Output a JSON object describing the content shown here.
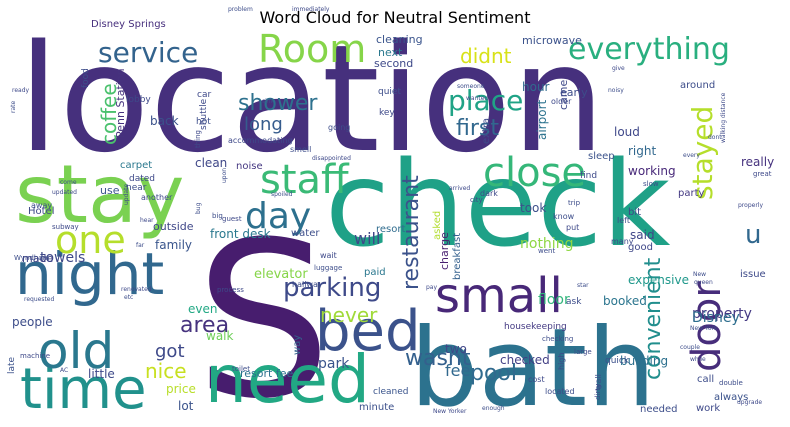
{
  "chart_data": {
    "type": "wordcloud",
    "title": "Word Cloud for Neutral Sentiment",
    "words": [
      {
        "text": "location",
        "color": "#46307d"
      },
      {
        "text": "S",
        "color": "#471d6e"
      },
      {
        "text": "check",
        "color": "#1fa187"
      },
      {
        "text": "bath",
        "color": "#2c728e"
      },
      {
        "text": "stay",
        "color": "#7ad151"
      },
      {
        "text": "need",
        "color": "#22a884"
      },
      {
        "text": "time",
        "color": "#21918c"
      },
      {
        "text": "night",
        "color": "#31688e"
      },
      {
        "text": "bed",
        "color": "#3b528b"
      },
      {
        "text": "small",
        "color": "#482878"
      },
      {
        "text": "old",
        "color": "#2a788e"
      },
      {
        "text": "Room",
        "color": "#86d549"
      },
      {
        "text": "staff",
        "color": "#3aba76"
      },
      {
        "text": "close",
        "color": "#35b779"
      },
      {
        "text": "day",
        "color": "#2d708e"
      },
      {
        "text": "one",
        "color": "#b5de2b"
      },
      {
        "text": "door",
        "color": "#472d7b"
      },
      {
        "text": "everything",
        "color": "#29af7f"
      },
      {
        "text": "service",
        "color": "#33638d"
      },
      {
        "text": "place",
        "color": "#20a386"
      },
      {
        "text": "stayed",
        "color": "#b5de2b"
      },
      {
        "text": "parking",
        "color": "#3e4a89"
      },
      {
        "text": "convenient",
        "color": "#218e8d"
      },
      {
        "text": "shower",
        "color": "#2d718e"
      },
      {
        "text": "restaurant",
        "color": "#3b528b"
      },
      {
        "text": "first",
        "color": "#31688e"
      },
      {
        "text": "pool",
        "color": "#306a8e"
      },
      {
        "text": "wasnt",
        "color": "#34608d"
      },
      {
        "text": "area",
        "color": "#46327e"
      },
      {
        "text": "u",
        "color": "#31688e"
      },
      {
        "text": "never",
        "color": "#a0da39"
      },
      {
        "text": "nice",
        "color": "#c8e020"
      },
      {
        "text": "got",
        "color": "#3e4989"
      },
      {
        "text": "long",
        "color": "#365c8d"
      },
      {
        "text": "will",
        "color": "#3f4788"
      },
      {
        "text": "coffee",
        "color": "#4ac16d"
      },
      {
        "text": "didnt",
        "color": "#d8e219"
      },
      {
        "text": "fee",
        "color": "#31688e"
      },
      {
        "text": "property",
        "color": "#443983"
      },
      {
        "text": "Disney",
        "color": "#2e6e8e"
      },
      {
        "text": "park",
        "color": "#3a548c"
      },
      {
        "text": "nothing",
        "color": "#8fd744"
      },
      {
        "text": "floor",
        "color": "#31b57b"
      },
      {
        "text": "family",
        "color": "#39558c"
      },
      {
        "text": "front desk",
        "color": "#2a788e"
      },
      {
        "text": "elevator",
        "color": "#86d549"
      },
      {
        "text": "towels",
        "color": "#3e4989"
      },
      {
        "text": "made",
        "color": "#414487"
      },
      {
        "text": "even",
        "color": "#22a884"
      },
      {
        "text": "people",
        "color": "#3d4d8a"
      },
      {
        "text": "walk",
        "color": "#6ece58"
      },
      {
        "text": "little",
        "color": "#3e4989"
      },
      {
        "text": "price",
        "color": "#b8de29"
      },
      {
        "text": "lot",
        "color": "#3a538b"
      },
      {
        "text": "resort fee",
        "color": "#2c728e"
      },
      {
        "text": "checked",
        "color": "#423f85"
      },
      {
        "text": "two",
        "color": "#404688"
      },
      {
        "text": "booked",
        "color": "#2b758e"
      },
      {
        "text": "working",
        "color": "#482979"
      },
      {
        "text": "building",
        "color": "#2d708e"
      },
      {
        "text": "expensive",
        "color": "#1f988b"
      },
      {
        "text": "back",
        "color": "#3b528b"
      },
      {
        "text": "hour",
        "color": "#306a8e"
      },
      {
        "text": "next",
        "color": "#2a788e"
      },
      {
        "text": "cleaning",
        "color": "#3a548c"
      },
      {
        "text": "second",
        "color": "#3e4989"
      },
      {
        "text": "early",
        "color": "#3d4d8a"
      },
      {
        "text": "microwave",
        "color": "#3b528b"
      },
      {
        "text": "airport",
        "color": "#2c728e"
      },
      {
        "text": "came",
        "color": "#3e4989"
      },
      {
        "text": "loud",
        "color": "#3f4889"
      },
      {
        "text": "right",
        "color": "#31688e"
      },
      {
        "text": "took",
        "color": "#3c4f8a"
      },
      {
        "text": "said",
        "color": "#404688"
      },
      {
        "text": "really",
        "color": "#46327e"
      },
      {
        "text": "clean",
        "color": "#3f4788"
      },
      {
        "text": "Penn Station",
        "color": "#46337f"
      },
      {
        "text": "Disney Springs",
        "color": "#472f7d"
      },
      {
        "text": "Hotel",
        "color": "#3e4989"
      },
      {
        "text": "outside",
        "color": "#3f4788"
      },
      {
        "text": "use",
        "color": "#3a548c"
      },
      {
        "text": "carpet",
        "color": "#2a788e"
      },
      {
        "text": "noise",
        "color": "#453781"
      },
      {
        "text": "water",
        "color": "#3d4e8a"
      },
      {
        "text": "resort",
        "color": "#2f6c8e"
      },
      {
        "text": "paid",
        "color": "#2a778e"
      },
      {
        "text": "charge",
        "color": "#481f70"
      },
      {
        "text": "asked",
        "color": "#b2dd2d"
      },
      {
        "text": "breakfast",
        "color": "#34608d"
      },
      {
        "text": "housekeeping",
        "color": "#443a83"
      },
      {
        "text": "minute",
        "color": "#3c508b"
      },
      {
        "text": "cleaned",
        "color": "#3a548c"
      },
      {
        "text": "way",
        "color": "#33638d"
      },
      {
        "text": "late",
        "color": "#3b528b"
      },
      {
        "text": "work",
        "color": "#3e4989"
      },
      {
        "text": "needed",
        "color": "#3d4e8a"
      },
      {
        "text": "always",
        "color": "#3b528b"
      },
      {
        "text": "call",
        "color": "#3d4d8a"
      },
      {
        "text": "issue",
        "color": "#3e4a89"
      },
      {
        "text": "good",
        "color": "#3f4788"
      },
      {
        "text": "party",
        "color": "#443983"
      },
      {
        "text": "sleep",
        "color": "#3b528b"
      },
      {
        "text": "extra",
        "color": "#3e4989"
      },
      {
        "text": "find",
        "color": "#3e4989"
      },
      {
        "text": "bit",
        "color": "#3f4788"
      },
      {
        "text": "ask",
        "color": "#3d4d8a"
      },
      {
        "text": "quick",
        "color": "#3c508b"
      },
      {
        "text": "lobby",
        "color": "#3e4989"
      },
      {
        "text": "hot",
        "color": "#3d4d8a"
      },
      {
        "text": "shuttle",
        "color": "#3e4989"
      },
      {
        "text": "food",
        "color": "#3d4d8a"
      },
      {
        "text": "dated",
        "color": "#3e4989"
      },
      {
        "text": "around",
        "color": "#3d4d8a"
      },
      {
        "text": "key",
        "color": "#3e4989"
      },
      {
        "text": "quiet",
        "color": "#3d4d8a"
      },
      {
        "text": "older",
        "color": "#3e4989"
      },
      {
        "text": "near",
        "color": "#3d4d8a"
      },
      {
        "text": "another",
        "color": "#3e4989"
      },
      {
        "text": "away",
        "color": "#3d4d8a"
      },
      {
        "text": "car",
        "color": "#3e4989"
      },
      {
        "text": "smell",
        "color": "#3d4d8a"
      },
      {
        "text": "accommodating",
        "color": "#3e4989"
      },
      {
        "text": "going",
        "color": "#3d4d8a"
      },
      {
        "text": "dark",
        "color": "#3e4989"
      },
      {
        "text": "know",
        "color": "#3d4d8a"
      },
      {
        "text": "put",
        "color": "#3e4989"
      },
      {
        "text": "left",
        "color": "#3d4d8a"
      },
      {
        "text": "many",
        "color": "#3e4989"
      },
      {
        "text": "went",
        "color": "#3d4d8a"
      },
      {
        "text": "subway",
        "color": "#3e4989"
      },
      {
        "text": "luggage",
        "color": "#3d4d8a"
      },
      {
        "text": "wait",
        "color": "#3e4989"
      },
      {
        "text": "hallway",
        "color": "#3d4d8a"
      },
      {
        "text": "cost",
        "color": "#3e4989"
      },
      {
        "text": "located",
        "color": "#3d4d8a"
      },
      {
        "text": "high",
        "color": "#3e4989"
      },
      {
        "text": "wall",
        "color": "#3d4d8a"
      },
      {
        "text": "large",
        "color": "#3e4989"
      },
      {
        "text": "checking",
        "color": "#3d4d8a"
      },
      {
        "text": "process",
        "color": "#3e4989"
      },
      {
        "text": "toilet",
        "color": "#3d4d8a"
      },
      {
        "text": "dirty",
        "color": "#3e4989"
      },
      {
        "text": "enough",
        "color": "#3d4d8a"
      },
      {
        "text": "New Yorker",
        "color": "#3e4989"
      },
      {
        "text": "double",
        "color": "#3d4d8a"
      },
      {
        "text": "upgrade",
        "color": "#3e4989"
      },
      {
        "text": "Wyndham",
        "color": "#3d4d8a"
      },
      {
        "text": "machine",
        "color": "#3e4989"
      },
      {
        "text": "big",
        "color": "#3d4d8a"
      },
      {
        "text": "guest",
        "color": "#3e4989"
      },
      {
        "text": "slow",
        "color": "#3d4d8a"
      },
      {
        "text": "great",
        "color": "#3e4989"
      },
      {
        "text": "every",
        "color": "#3d4d8a"
      },
      {
        "text": "city",
        "color": "#3e4989"
      },
      {
        "text": "trip",
        "color": "#3d4d8a"
      },
      {
        "text": "arrived",
        "color": "#3e4989"
      },
      {
        "text": "problem",
        "color": "#3d4d8a"
      },
      {
        "text": "immediately",
        "color": "#3e4989"
      },
      {
        "text": "someone",
        "color": "#3d4d8a"
      },
      {
        "text": "wanted",
        "color": "#3e4989"
      },
      {
        "text": "noisy",
        "color": "#3d4d8a"
      },
      {
        "text": "give",
        "color": "#3e4989"
      },
      {
        "text": "dont",
        "color": "#3d4d8a"
      },
      {
        "text": "walking distance",
        "color": "#3e4989"
      },
      {
        "text": "sink",
        "color": "#3d4d8a"
      },
      {
        "text": "ready",
        "color": "#3e4989"
      },
      {
        "text": "rate",
        "color": "#3d4d8a"
      },
      {
        "text": "thing",
        "color": "#3e4989"
      },
      {
        "text": "bug",
        "color": "#3d4d8a"
      },
      {
        "text": "disappointed",
        "color": "#3e4989"
      },
      {
        "text": "upon",
        "color": "#3d4d8a"
      },
      {
        "text": "hear",
        "color": "#3e4989"
      },
      {
        "text": "come",
        "color": "#3d4d8a"
      },
      {
        "text": "updated",
        "color": "#3e4989"
      },
      {
        "text": "requested",
        "color": "#3d4d8a"
      },
      {
        "text": "renovated",
        "color": "#3e4989"
      },
      {
        "text": "etc",
        "color": "#3d4d8a"
      },
      {
        "text": "AC",
        "color": "#3e4989"
      },
      {
        "text": "far",
        "color": "#3d4d8a"
      },
      {
        "text": "update",
        "color": "#3e4989"
      },
      {
        "text": "spoiled",
        "color": "#3d4d8a"
      },
      {
        "text": "properly",
        "color": "#3e4989"
      },
      {
        "text": "couple",
        "color": "#3d4d8a"
      },
      {
        "text": "while",
        "color": "#3e4989"
      },
      {
        "text": "New York",
        "color": "#3d4d8a"
      },
      {
        "text": "queen",
        "color": "#3e4989"
      },
      {
        "text": "star",
        "color": "#3d4d8a"
      },
      {
        "text": "pay",
        "color": "#3e4989"
      },
      {
        "text": "New",
        "color": "#3d4d8a"
      }
    ]
  }
}
